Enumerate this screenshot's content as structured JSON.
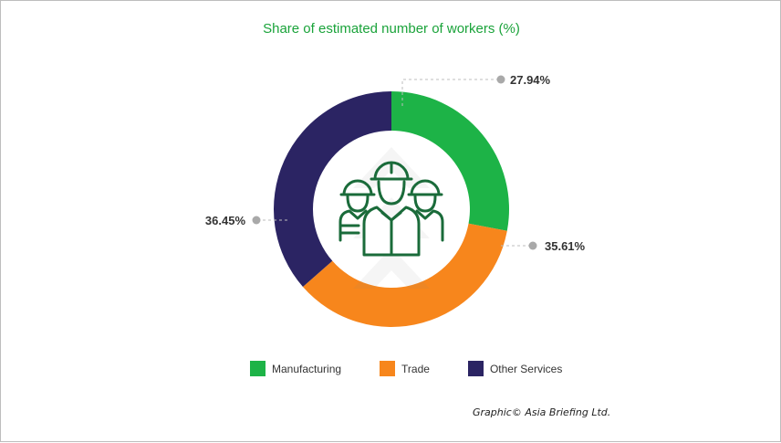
{
  "chart_data": {
    "type": "pie",
    "title": "Share of estimated number of workers (%)",
    "categories": [
      "Manufacturing",
      "Trade",
      "Other Services"
    ],
    "values": [
      27.94,
      35.61,
      36.45
    ],
    "value_labels": [
      "27.94%",
      "35.61%",
      "36.45%"
    ],
    "colors": [
      "#1db347",
      "#f7861c",
      "#2b2463"
    ],
    "legend_position": "bottom",
    "donut": true,
    "center_icon": "workers-icon"
  },
  "credit": "Graphic© Asia Briefing Ltd."
}
